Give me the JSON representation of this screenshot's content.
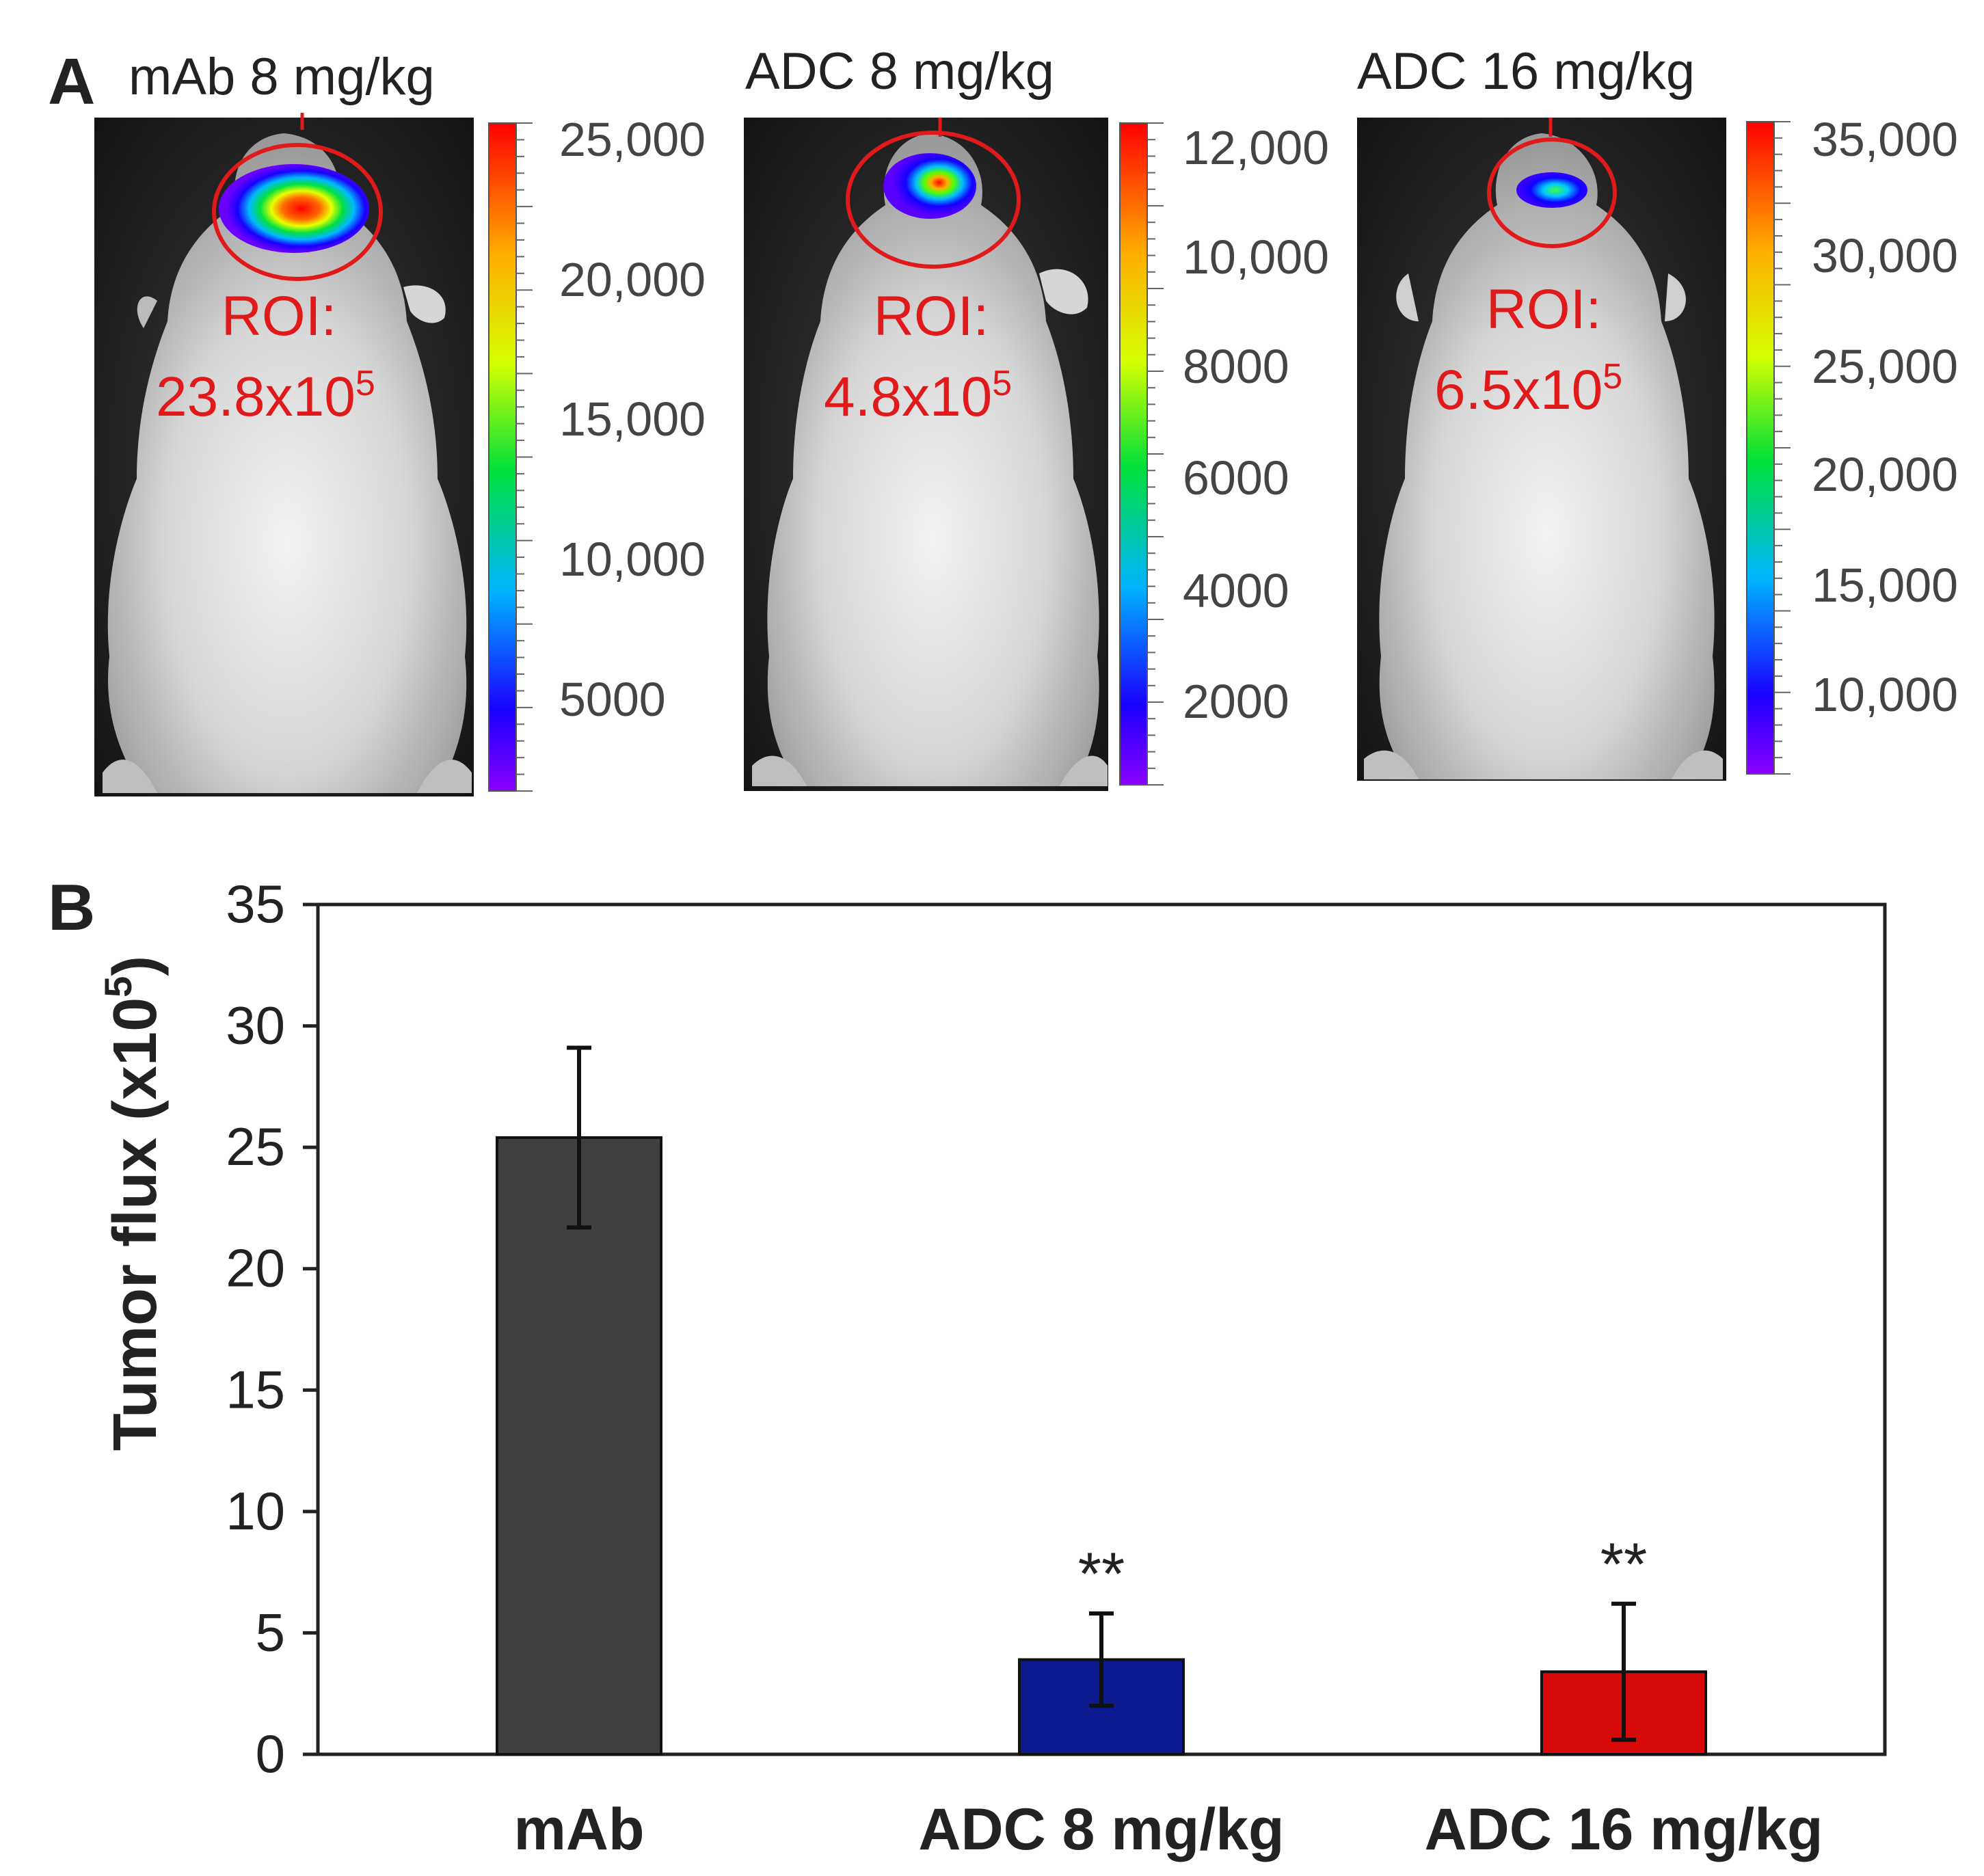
{
  "panel_a": {
    "letter": "A",
    "panels": [
      {
        "title": "mAb 8 mg/kg",
        "roi_label": "ROI:",
        "roi_mantissa": "23.8x10",
        "roi_exponent": "5",
        "scale_ticks": [
          "25,000",
          "20,000",
          "15,000",
          "10,000",
          "5000"
        ],
        "hotspot": "large"
      },
      {
        "title": "ADC 8 mg/kg",
        "roi_label": "ROI:",
        "roi_mantissa": "4.8x10",
        "roi_exponent": "5",
        "scale_ticks": [
          "12,000",
          "10,000",
          "8000",
          "6000",
          "4000",
          "2000"
        ],
        "hotspot": "medium"
      },
      {
        "title": "ADC 16 mg/kg",
        "roi_label": "ROI:",
        "roi_mantissa": "6.5x10",
        "roi_exponent": "5",
        "scale_ticks": [
          "35,000",
          "30,000",
          "25,000",
          "20,000",
          "15,000",
          "10,000"
        ],
        "hotspot": "small"
      }
    ]
  },
  "chart_data": {
    "panel_letter": "B",
    "type": "bar",
    "categories": [
      "mAb",
      "ADC 8 mg/kg",
      "ADC 16 mg/kg"
    ],
    "values": [
      25.4,
      3.9,
      3.4
    ],
    "errors": [
      3.7,
      1.9,
      2.8
    ],
    "colors": [
      "#404040",
      "#0d1a8f",
      "#d60a0a"
    ],
    "annotations": [
      "",
      "**",
      "**"
    ],
    "ylabel": "Tumor flux (x10",
    "ylabel_exponent": "5",
    "ylabel_close": ")",
    "ylim": [
      0,
      35
    ],
    "yticks": [
      0,
      5,
      10,
      15,
      20,
      25,
      30,
      35
    ],
    "xlabel": "",
    "grid": false
  }
}
